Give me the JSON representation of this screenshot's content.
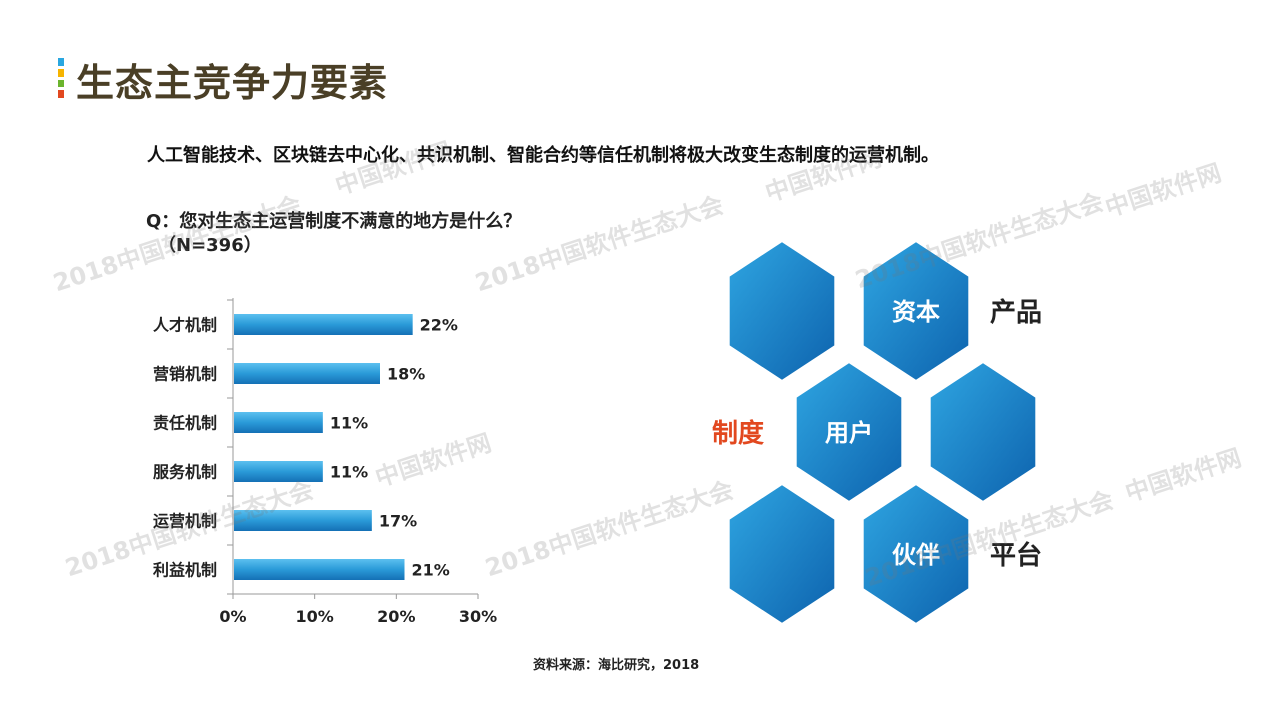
{
  "page": {
    "title": "生态主竞争力要素",
    "subtitle": "人工智能技术、区块链去中心化、共识机制、智能合约等信任机制将极大改变生态制度的运营机制。",
    "question": "Q：您对生态主运营制度不满意的地方是什么？",
    "sample": "（N=396）",
    "source": "资料来源：海比研究，2018",
    "title_bar_colors": [
      "#2aa7e0",
      "#f6b400",
      "#6bb42d",
      "#e2481f"
    ]
  },
  "chart_data": {
    "type": "bar",
    "orientation": "horizontal",
    "categories": [
      "人才机制",
      "营销机制",
      "责任机制",
      "服务机制",
      "运营机制",
      "利益机制"
    ],
    "values": [
      22,
      18,
      11,
      11,
      17,
      21
    ],
    "data_labels": [
      "22%",
      "18%",
      "11%",
      "11%",
      "17%",
      "21%"
    ],
    "xlim": [
      0,
      30
    ],
    "xticks": [
      "0%",
      "10%",
      "20%",
      "30%"
    ],
    "grid": false,
    "bar_color": "#1f8fd0"
  },
  "diagram": {
    "hex_labels": [
      "资本",
      "用户",
      "伙伴"
    ],
    "side_labels": [
      "产品",
      "制度",
      "平台"
    ],
    "hex_color": "#1a7fc4",
    "accent_color": "#e2481f"
  },
  "watermarks": [
    "2018中国软件生态大会",
    "中国软件网"
  ]
}
